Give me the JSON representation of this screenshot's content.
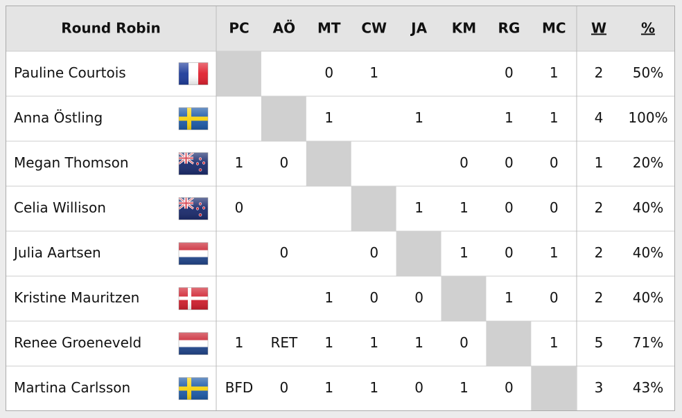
{
  "header": {
    "title": "Round Robin",
    "columns": [
      "PC",
      "AÖ",
      "MT",
      "CW",
      "JA",
      "KM",
      "RG",
      "MC"
    ],
    "wins": "W",
    "pct": "%"
  },
  "rows": [
    {
      "name": "Pauline Courtois",
      "results": [
        null,
        null,
        0,
        1,
        null,
        null,
        0,
        1
      ],
      "wins": 2,
      "pct": "50%"
    },
    {
      "name": "Anna Östling",
      "results": [
        null,
        null,
        1,
        null,
        1,
        null,
        1,
        1
      ],
      "wins": 4,
      "pct": "100%"
    },
    {
      "name": "Megan Thomson",
      "results": [
        1,
        0,
        null,
        null,
        null,
        0,
        0,
        0
      ],
      "wins": 1,
      "pct": "20%"
    },
    {
      "name": "Celia Willison",
      "results": [
        0,
        null,
        null,
        null,
        1,
        1,
        0,
        0
      ],
      "wins": 2,
      "pct": "40%"
    },
    {
      "name": "Julia Aartsen",
      "results": [
        null,
        0,
        null,
        0,
        null,
        1,
        0,
        1
      ],
      "wins": 2,
      "pct": "40%"
    },
    {
      "name": "Kristine Mauritzen",
      "results": [
        null,
        null,
        1,
        0,
        0,
        null,
        1,
        0
      ],
      "wins": 2,
      "pct": "40%"
    },
    {
      "name": "Renee Groeneveld",
      "results": [
        1,
        "RET",
        1,
        1,
        1,
        0,
        null,
        1
      ],
      "wins": 5,
      "pct": "71%"
    },
    {
      "name": "Martina Carlsson",
      "results": [
        "BFD",
        0,
        1,
        1,
        0,
        1,
        0,
        null
      ],
      "wins": 3,
      "pct": "43%"
    }
  ]
}
